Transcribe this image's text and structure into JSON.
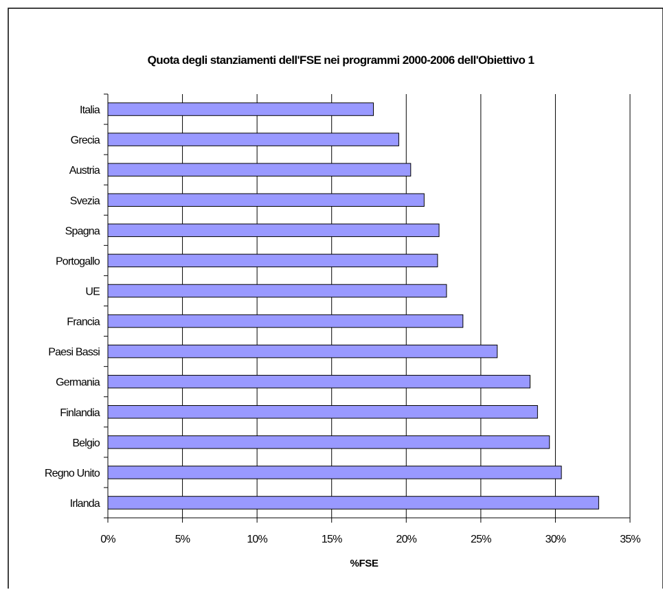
{
  "chart_data": {
    "type": "bar",
    "orientation": "horizontal",
    "title": "Quota degli stanziamenti dell'FSE nei programmi 2000-2006 dell'Obiettivo 1",
    "xlabel": "%FSE",
    "ylabel": "",
    "categories": [
      "Italia",
      "Grecia",
      "Austria",
      "Svezia",
      "Spagna",
      "Portogallo",
      "UE",
      "Francia",
      "Paesi Bassi",
      "Germania",
      "Finlandia",
      "Belgio",
      "Regno Unito",
      "Irlanda"
    ],
    "values": [
      0.178,
      0.195,
      0.203,
      0.212,
      0.222,
      0.221,
      0.227,
      0.238,
      0.261,
      0.283,
      0.288,
      0.296,
      0.304,
      0.329
    ],
    "xlim": [
      0,
      0.35
    ],
    "x_ticks": [
      0,
      0.05,
      0.1,
      0.15,
      0.2,
      0.25,
      0.3,
      0.35
    ],
    "x_tick_labels": [
      "0%",
      "5%",
      "10%",
      "15%",
      "20%",
      "25%",
      "30%",
      "35%"
    ],
    "grid": "vertical",
    "legend": "none",
    "colors": {
      "bar_fill": "#9999FF",
      "bar_stroke": "#000000",
      "grid": "#000000",
      "border": "#000000"
    }
  }
}
